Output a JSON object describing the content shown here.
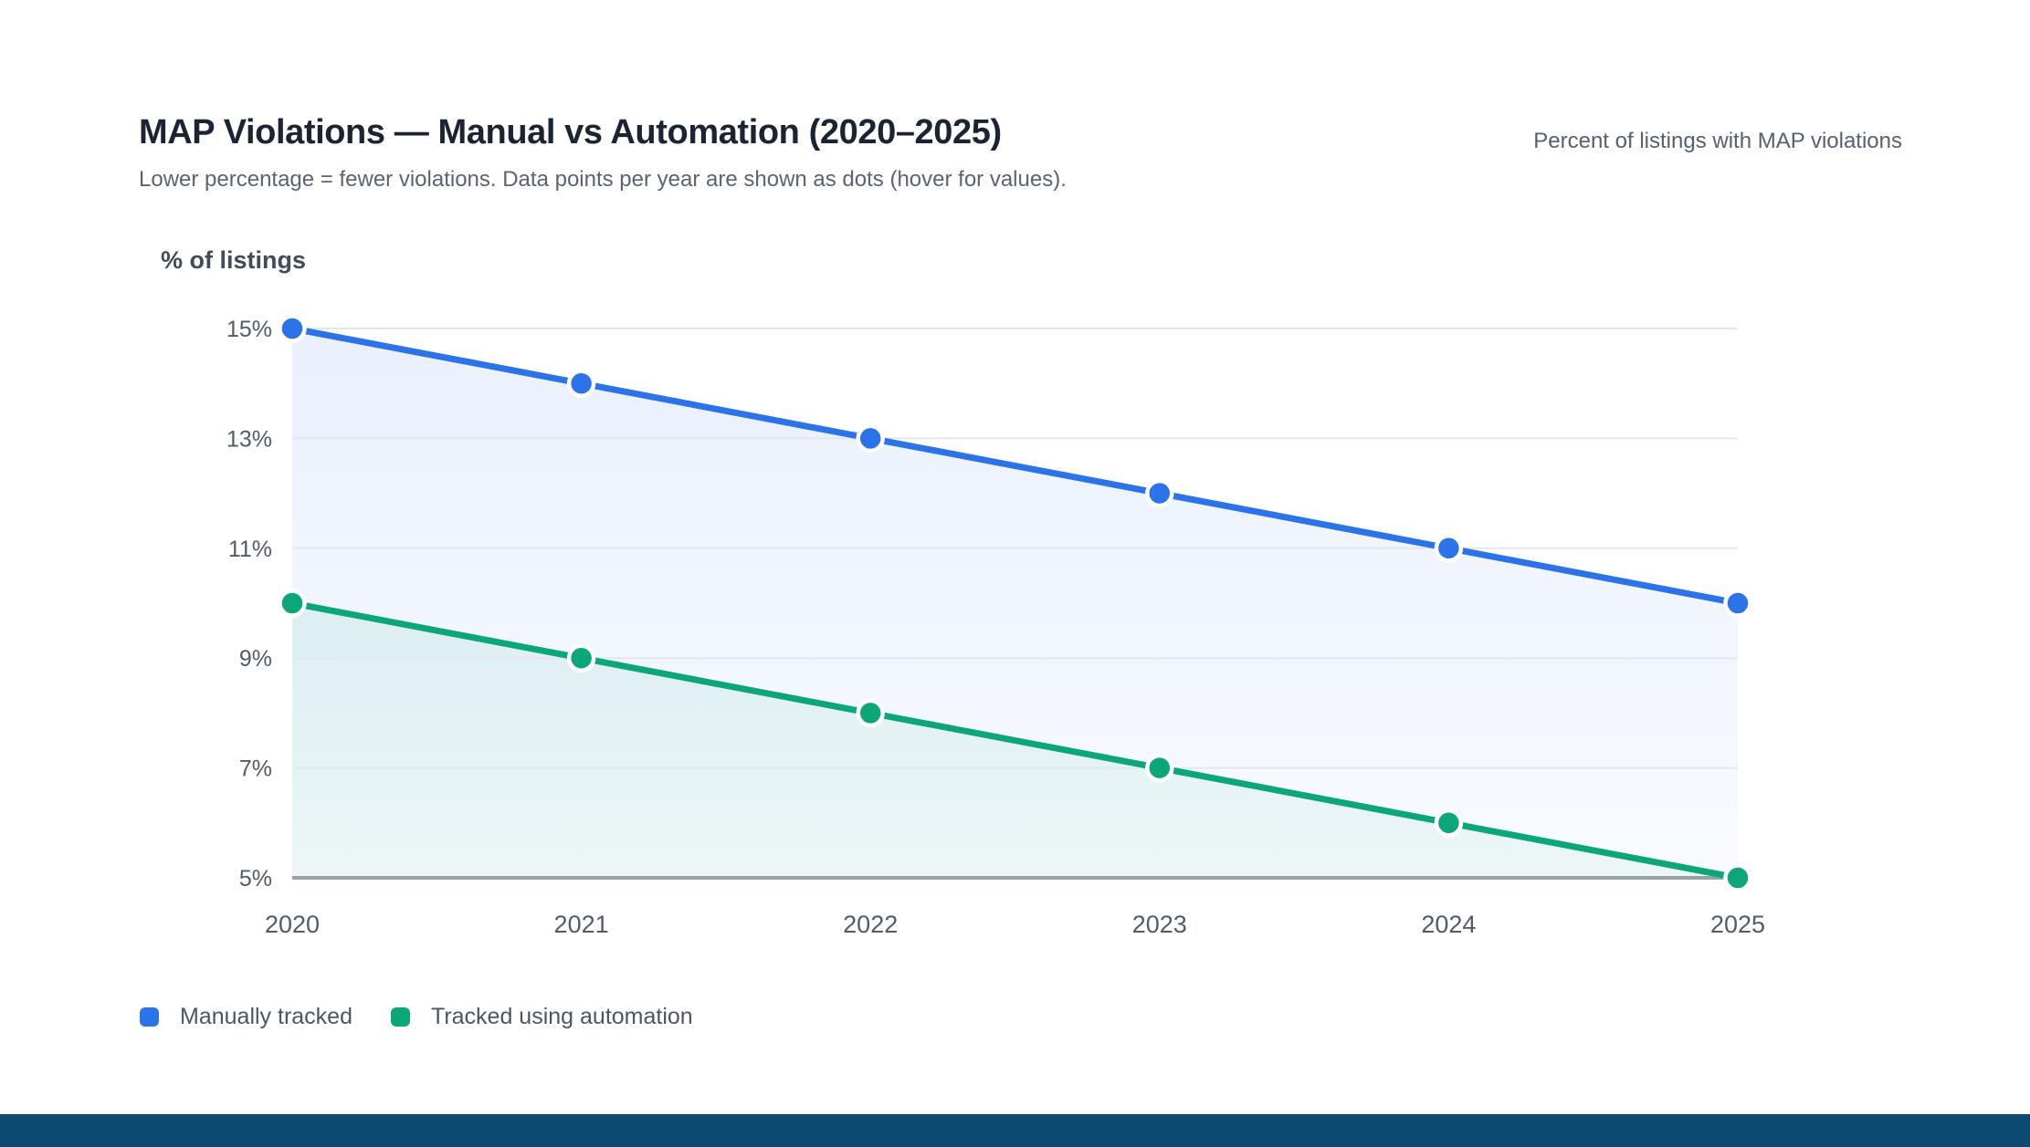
{
  "page": {
    "title": "MAP Violations — Manual vs Automation (2020–2025)",
    "subtitle": "Lower percentage = fewer violations. Data points per year are shown as dots (hover for values).",
    "note": "Percent of listings with MAP violations"
  },
  "chart_data": {
    "type": "line",
    "title": "MAP Violations — Manual vs Automation (2020–2025)",
    "subtitle": "Lower percentage = fewer violations. Data points per year are shown as dots (hover for values).",
    "right_note": "Percent of listings with MAP violations",
    "ylabel": "% of listings",
    "xlabel": "",
    "categories": [
      "2020",
      "2021",
      "2022",
      "2023",
      "2024",
      "2025"
    ],
    "y_ticks": [
      15,
      13,
      11,
      9,
      7,
      5
    ],
    "y_tick_labels": [
      "15%",
      "13%",
      "11%",
      "9%",
      "7%",
      "5%"
    ],
    "ylim": [
      5,
      15
    ],
    "grid": "horizontal",
    "legend_position": "bottom-left",
    "series": [
      {
        "name": "Manually tracked",
        "color": "#2c72e8",
        "fill_top": "rgba(44,114,232,0.10)",
        "fill_bottom": "rgba(44,114,232,0.03)",
        "values": [
          15,
          14,
          13,
          12,
          11,
          10
        ]
      },
      {
        "name": "Tracked using automation",
        "color": "#0ca678",
        "fill_top": "rgba(12,166,120,0.09)",
        "fill_bottom": "rgba(12,166,120,0.05)",
        "values": [
          10,
          9,
          8,
          7,
          6,
          5
        ]
      }
    ]
  },
  "colors": {
    "grid_line": "#e4e7ec",
    "axis_line": "#97a2ad",
    "tick_text": "#515b69",
    "footer_bar": "#0d4a72"
  }
}
